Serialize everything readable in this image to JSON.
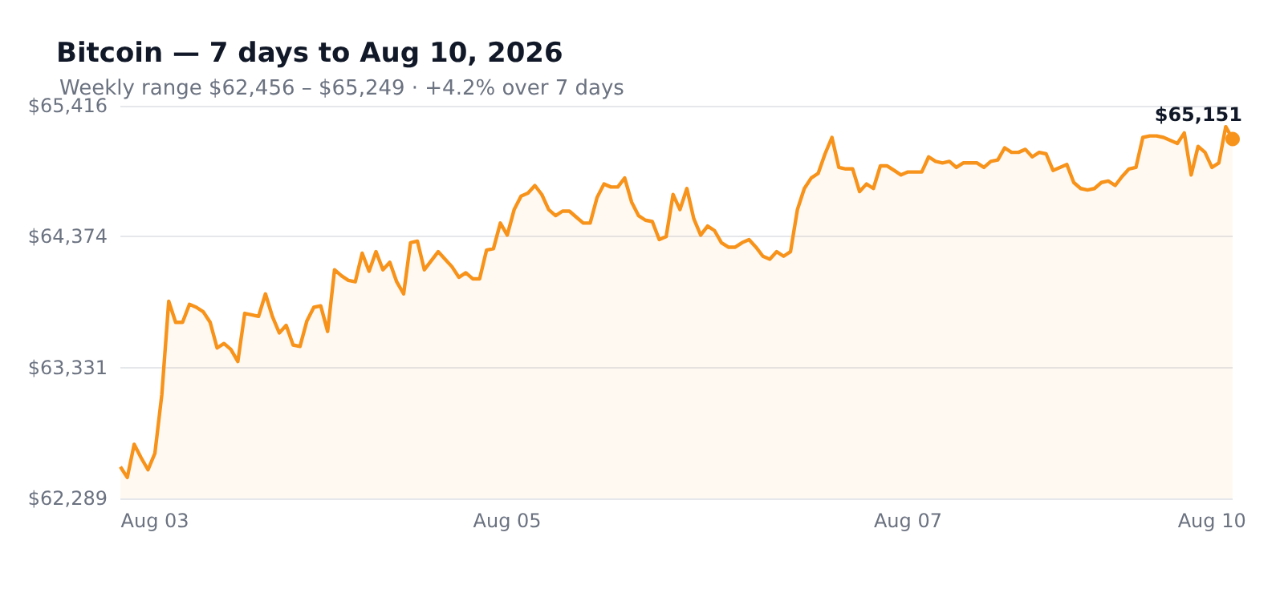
{
  "chart_data": {
    "type": "area",
    "title": "Bitcoin — 7 days to Aug 10, 2026",
    "subtitle": "Weekly range $62,456 – $65,249 · +4.2% over 7 days",
    "categories": [
      null,
      null,
      null,
      null,
      null,
      "Aug 03",
      null,
      null,
      null,
      null,
      null,
      null,
      null,
      null,
      null,
      null,
      null,
      null,
      null,
      null,
      null,
      null,
      null,
      null,
      null,
      null,
      null,
      null,
      null,
      null,
      null,
      null,
      null,
      null,
      null,
      null,
      null,
      null,
      null,
      null,
      null,
      null,
      null,
      null,
      null,
      null,
      null,
      null,
      null,
      null,
      null,
      null,
      null,
      null,
      null,
      null,
      "Aug 05",
      null,
      null,
      null,
      null,
      null,
      null,
      null,
      null,
      null,
      null,
      null,
      null,
      null,
      null,
      null,
      null,
      null,
      null,
      null,
      null,
      null,
      null,
      null,
      null,
      null,
      null,
      null,
      null,
      null,
      null,
      null,
      null,
      null,
      null,
      null,
      null,
      null,
      null,
      null,
      null,
      null,
      null,
      null,
      null,
      null,
      null,
      null,
      null,
      null,
      null,
      null,
      null,
      null,
      null,
      null,
      null,
      null,
      "Aug 07",
      null,
      null,
      null,
      null,
      null,
      null,
      null,
      null,
      null,
      null,
      null,
      null,
      null,
      null,
      null,
      null,
      null,
      null,
      null,
      null,
      null,
      null,
      null,
      null,
      null,
      null,
      null,
      null,
      null,
      null,
      null,
      null,
      null,
      null,
      null,
      null,
      null,
      null,
      null,
      null,
      null,
      null,
      null,
      "Aug 10",
      null,
      null,
      null
    ],
    "series": [
      {
        "color": "#f7931a",
        "values": [
          62541,
          62456,
          62720,
          62613,
          62517,
          62649,
          63116,
          63859,
          63691,
          63691,
          63835,
          63811,
          63775,
          63691,
          63487,
          63523,
          63475,
          63379,
          63763,
          63751,
          63739,
          63918,
          63739,
          63607,
          63667,
          63511,
          63499,
          63703,
          63811,
          63823,
          63619,
          64110,
          64062,
          64026,
          64014,
          64242,
          64098,
          64254,
          64110,
          64170,
          64014,
          63918,
          64326,
          64338,
          64110,
          64182,
          64254,
          64194,
          64134,
          64050,
          64086,
          64038,
          64038,
          64266,
          64278,
          64482,
          64386,
          64589,
          64697,
          64721,
          64781,
          64709,
          64589,
          64541,
          64577,
          64577,
          64529,
          64482,
          64482,
          64685,
          64793,
          64769,
          64769,
          64841,
          64649,
          64541,
          64505,
          64494,
          64350,
          64374,
          64709,
          64589,
          64757,
          64517,
          64386,
          64458,
          64422,
          64326,
          64290,
          64290,
          64326,
          64350,
          64290,
          64218,
          64194,
          64254,
          64218,
          64254,
          64589,
          64757,
          64841,
          64877,
          65033,
          65164,
          64925,
          64913,
          64913,
          64733,
          64793,
          64757,
          64937,
          64937,
          64901,
          64865,
          64889,
          64889,
          64889,
          65009,
          64973,
          64961,
          64973,
          64925,
          64961,
          64961,
          64961,
          64925,
          64973,
          64985,
          65081,
          65045,
          65045,
          65069,
          65009,
          65045,
          65033,
          64901,
          64925,
          64949,
          64805,
          64757,
          64745,
          64757,
          64805,
          64817,
          64781,
          64853,
          64913,
          64925,
          65164,
          65176,
          65176,
          65164,
          65140,
          65116,
          65200,
          64865,
          65093,
          65045,
          64925,
          64961,
          65249,
          65151
        ],
        "value_labels": [
          null,
          null,
          null,
          null,
          null,
          null,
          null,
          null,
          null,
          null,
          null,
          null,
          null,
          null,
          null,
          null,
          null,
          null,
          null,
          null,
          null,
          null,
          null,
          null,
          null,
          null,
          null,
          null,
          null,
          null,
          null,
          null,
          null,
          null,
          null,
          null,
          null,
          null,
          null,
          null,
          null,
          null,
          null,
          null,
          null,
          null,
          null,
          null,
          null,
          null,
          null,
          null,
          null,
          null,
          null,
          null,
          null,
          null,
          null,
          null,
          null,
          null,
          null,
          null,
          null,
          null,
          null,
          null,
          null,
          null,
          null,
          null,
          null,
          null,
          null,
          null,
          null,
          null,
          null,
          null,
          null,
          null,
          null,
          null,
          null,
          null,
          null,
          null,
          null,
          null,
          null,
          null,
          null,
          null,
          null,
          null,
          null,
          null,
          null,
          null,
          null,
          null,
          null,
          null,
          null,
          null,
          null,
          null,
          null,
          null,
          null,
          null,
          null,
          null,
          null,
          null,
          null,
          null,
          null,
          null,
          null,
          null,
          null,
          null,
          null,
          null,
          null,
          null,
          null,
          null,
          null,
          null,
          null,
          null,
          null,
          null,
          null,
          null,
          null,
          null,
          null,
          null,
          null,
          null,
          null,
          null,
          null,
          null,
          null,
          null,
          null,
          null,
          null,
          null,
          null,
          null,
          null,
          null,
          null,
          null,
          null,
          "$65,151"
        ]
      }
    ],
    "ylim": [
      62289,
      65416
    ],
    "yticks": [
      {
        "value": 62289,
        "label": "$62,289"
      },
      {
        "value": 63331,
        "label": "$63,331"
      },
      {
        "value": 64374,
        "label": "$64,374"
      },
      {
        "value": 65416,
        "label": "$65,416"
      }
    ],
    "grid": "y"
  }
}
